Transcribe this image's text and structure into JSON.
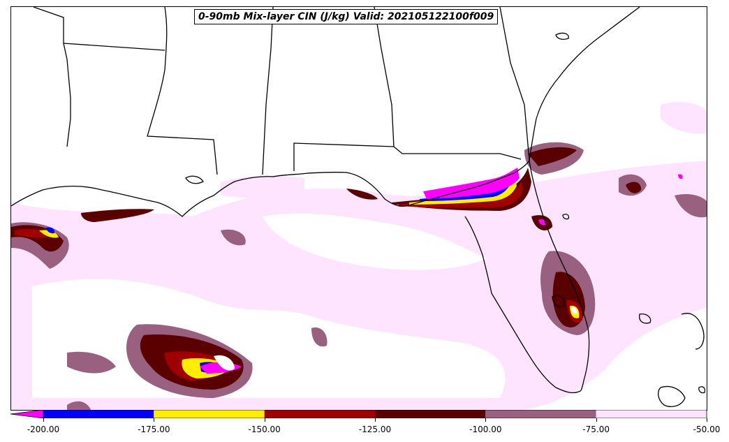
{
  "title": "0-90mb Mix-layer CIN (J/kg) Valid: 202105122100f009",
  "colorbar": {
    "min_arrow_color": "#ff00ff",
    "bins": [
      {
        "from": -200,
        "to": -175,
        "color": "#0000ff"
      },
      {
        "from": -175,
        "to": -150,
        "color": "#ffee00"
      },
      {
        "from": -150,
        "to": -125,
        "color": "#a00000"
      },
      {
        "from": -125,
        "to": -100,
        "color": "#5a0000"
      },
      {
        "from": -100,
        "to": -75,
        "color": "#996080"
      },
      {
        "from": -75,
        "to": -50,
        "color": "#ffe4ff"
      }
    ],
    "tick_labels": [
      "-200.00",
      "-175.00",
      "-150.00",
      "-125.00",
      "-100.00",
      "-75.00",
      "-50.00"
    ]
  }
}
